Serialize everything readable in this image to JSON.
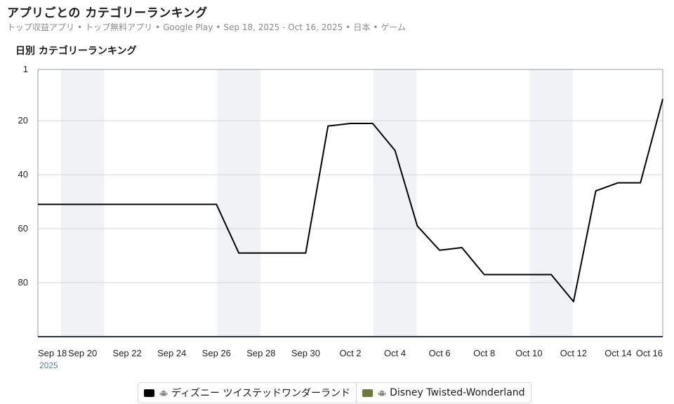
{
  "header": {
    "title": "アプリごとの カテゴリーランキング",
    "subtitle_parts": [
      "トップ収益アプリ",
      "トップ無料アプリ",
      "Google Play",
      "Sep 18, 2025 - Oct 16, 2025",
      "日本",
      "ゲーム"
    ],
    "subtitle_separator": "•"
  },
  "chart_data": {
    "type": "line",
    "title": "日別 カテゴリーランキング",
    "x": [
      "Sep 18",
      "Sep 19",
      "Sep 20",
      "Sep 21",
      "Sep 22",
      "Sep 23",
      "Sep 24",
      "Sep 25",
      "Sep 26",
      "Sep 27",
      "Sep 28",
      "Sep 29",
      "Sep 30",
      "Oct 1",
      "Oct 2",
      "Oct 3",
      "Oct 4",
      "Oct 5",
      "Oct 6",
      "Oct 7",
      "Oct 8",
      "Oct 9",
      "Oct 10",
      "Oct 11",
      "Oct 12",
      "Oct 13",
      "Oct 14",
      "Oct 15",
      "Oct 16"
    ],
    "x_tick_labels": [
      "Sep 18",
      "Sep 20",
      "Sep 22",
      "Sep 24",
      "Sep 26",
      "Sep 28",
      "Sep 30",
      "Oct 2",
      "Oct 4",
      "Oct 6",
      "Oct 8",
      "Oct 10",
      "Oct 12",
      "Oct 14",
      "Oct 16"
    ],
    "x_year_label": "2025",
    "y_reversed": true,
    "ylim": [
      1,
      100
    ],
    "y_ticks": [
      1,
      20,
      40,
      60,
      80
    ],
    "grid": true,
    "weekend_bands": [
      [
        "Sep 19",
        "Sep 20"
      ],
      [
        "Sep 26",
        "Sep 27"
      ],
      [
        "Oct 3",
        "Oct 4"
      ],
      [
        "Oct 10",
        "Oct 11"
      ]
    ],
    "series": [
      {
        "name": "ディズニー ツイステッドワンダーランド",
        "color": "#000000",
        "values": [
          51,
          51,
          51,
          51,
          51,
          51,
          51,
          51,
          51,
          69,
          69,
          69,
          69,
          22,
          21,
          21,
          31,
          59,
          68,
          67,
          77,
          77,
          77,
          77,
          87,
          46,
          43,
          43,
          12
        ]
      }
    ]
  },
  "legend": [
    {
      "label": "ディズニー ツイステッドワンダーランド",
      "color": "#000000",
      "icon": "android-icon"
    },
    {
      "label": "Disney Twisted-Wonderland",
      "color": "#6b7a3a",
      "icon": "android-icon"
    }
  ]
}
